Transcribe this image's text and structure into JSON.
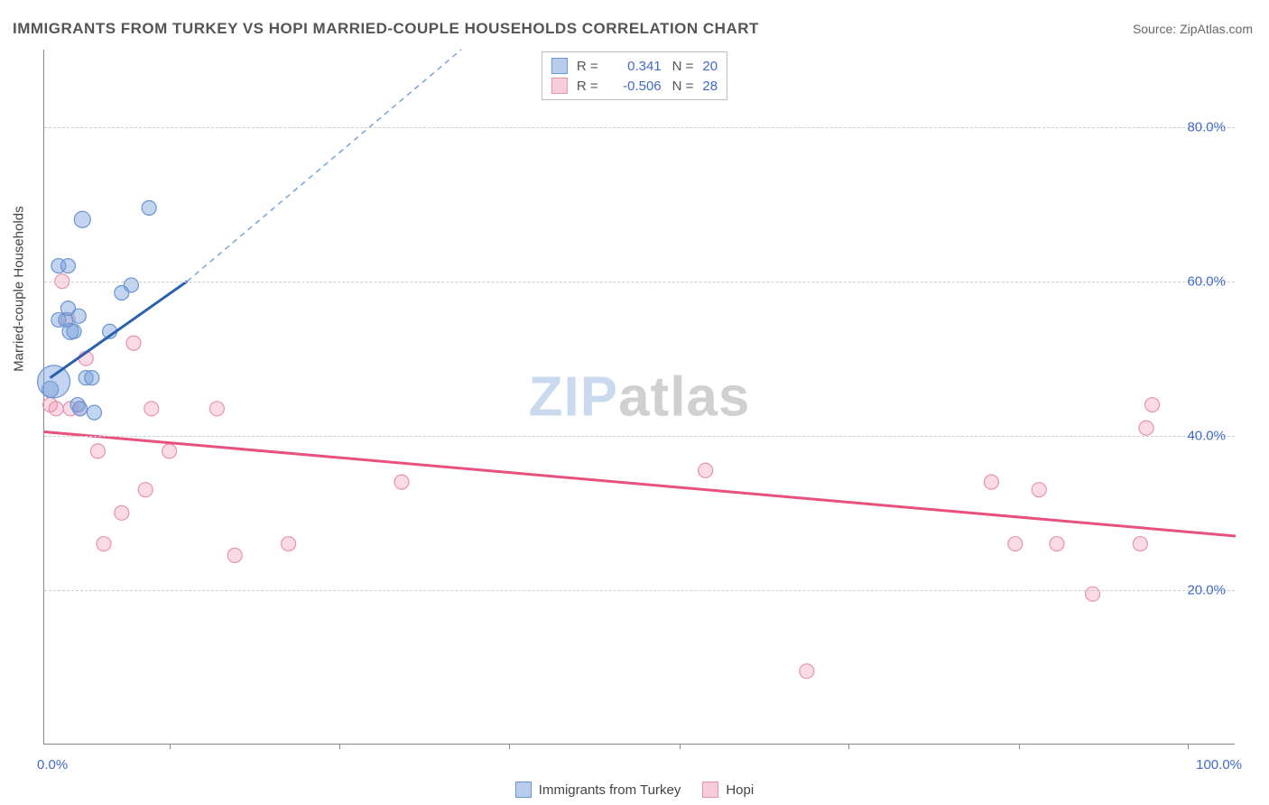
{
  "title": "IMMIGRANTS FROM TURKEY VS HOPI MARRIED-COUPLE HOUSEHOLDS CORRELATION CHART",
  "source_label": "Source: ",
  "source_value": "ZipAtlas.com",
  "ylabel": "Married-couple Households",
  "watermark_a": "ZIP",
  "watermark_b": "atlas",
  "chart": {
    "type": "scatter",
    "background_color": "#ffffff",
    "grid_color": "#cccccc",
    "axis_color": "#888888",
    "tick_label_color": "#4169c9",
    "xlim": [
      0,
      100
    ],
    "ylim": [
      0,
      90
    ],
    "x_min_label": "0.0%",
    "x_max_label": "100.0%",
    "x_ticks_pct": [
      10.5,
      24.8,
      39.0,
      53.3,
      67.5,
      81.8,
      96.0
    ],
    "y_gridlines": [
      20,
      40,
      60,
      80
    ],
    "y_labels": [
      "20.0%",
      "40.0%",
      "60.0%",
      "80.0%"
    ],
    "series": [
      {
        "key": "turkey",
        "name": "Immigrants from Turkey",
        "marker_fill": "rgba(120,160,220,0.45)",
        "marker_stroke": "#6a95d0",
        "line_color": "#2b5fb0",
        "line_dash_color": "#7aa2dd",
        "swatch_fill": "#b8cdec",
        "swatch_border": "#6a95d0",
        "R": "0.341",
        "N": "20",
        "trend_solid": {
          "x1": 0.5,
          "y1": 47.5,
          "x2": 12.0,
          "y2": 60.0
        },
        "trend_dash": {
          "x1": 12.0,
          "y1": 60.0,
          "x2": 35.0,
          "y2": 90.0
        },
        "points": [
          {
            "x": 0.5,
            "y": 46,
            "r": 9
          },
          {
            "x": 0.8,
            "y": 47,
            "r": 18
          },
          {
            "x": 1.2,
            "y": 55,
            "r": 8
          },
          {
            "x": 1.2,
            "y": 62,
            "r": 8
          },
          {
            "x": 1.8,
            "y": 55,
            "r": 8
          },
          {
            "x": 2.0,
            "y": 56.5,
            "r": 8
          },
          {
            "x": 2.0,
            "y": 62,
            "r": 8
          },
          {
            "x": 2.2,
            "y": 53.5,
            "r": 9
          },
          {
            "x": 2.5,
            "y": 53.5,
            "r": 8
          },
          {
            "x": 2.8,
            "y": 44,
            "r": 8
          },
          {
            "x": 2.9,
            "y": 55.5,
            "r": 8
          },
          {
            "x": 3.0,
            "y": 43.5,
            "r": 8
          },
          {
            "x": 3.2,
            "y": 68,
            "r": 9
          },
          {
            "x": 3.5,
            "y": 47.5,
            "r": 8
          },
          {
            "x": 4.0,
            "y": 47.5,
            "r": 8
          },
          {
            "x": 4.2,
            "y": 43,
            "r": 8
          },
          {
            "x": 5.5,
            "y": 53.5,
            "r": 8
          },
          {
            "x": 6.5,
            "y": 58.5,
            "r": 8
          },
          {
            "x": 7.3,
            "y": 59.5,
            "r": 8
          },
          {
            "x": 8.8,
            "y": 69.5,
            "r": 8
          }
        ]
      },
      {
        "key": "hopi",
        "name": "Hopi",
        "marker_fill": "rgba(240,150,180,0.35)",
        "marker_stroke": "#e594ae",
        "line_color": "#e8517e",
        "swatch_fill": "#f7cdd9",
        "swatch_border": "#e594ae",
        "R": "-0.506",
        "N": "28",
        "trend_solid": {
          "x1": 0.0,
          "y1": 40.5,
          "x2": 100.0,
          "y2": 27.0
        },
        "points": [
          {
            "x": 0.5,
            "y": 44,
            "r": 8
          },
          {
            "x": 1.0,
            "y": 43.5,
            "r": 8
          },
          {
            "x": 1.5,
            "y": 60,
            "r": 8
          },
          {
            "x": 2.0,
            "y": 55,
            "r": 8
          },
          {
            "x": 2.2,
            "y": 43.5,
            "r": 8
          },
          {
            "x": 3.0,
            "y": 43.5,
            "r": 8
          },
          {
            "x": 3.5,
            "y": 50,
            "r": 8
          },
          {
            "x": 4.5,
            "y": 38,
            "r": 8
          },
          {
            "x": 5.0,
            "y": 26,
            "r": 8
          },
          {
            "x": 6.5,
            "y": 30,
            "r": 8
          },
          {
            "x": 7.5,
            "y": 52,
            "r": 8
          },
          {
            "x": 8.5,
            "y": 33,
            "r": 8
          },
          {
            "x": 9.0,
            "y": 43.5,
            "r": 8
          },
          {
            "x": 10.5,
            "y": 38,
            "r": 8
          },
          {
            "x": 14.5,
            "y": 43.5,
            "r": 8
          },
          {
            "x": 16.0,
            "y": 24.5,
            "r": 8
          },
          {
            "x": 20.5,
            "y": 26,
            "r": 8
          },
          {
            "x": 30.0,
            "y": 34,
            "r": 8
          },
          {
            "x": 55.5,
            "y": 35.5,
            "r": 8
          },
          {
            "x": 64.0,
            "y": 9.5,
            "r": 8
          },
          {
            "x": 79.5,
            "y": 34,
            "r": 8
          },
          {
            "x": 81.5,
            "y": 26,
            "r": 8
          },
          {
            "x": 83.5,
            "y": 33,
            "r": 8
          },
          {
            "x": 85.0,
            "y": 26,
            "r": 8
          },
          {
            "x": 88.0,
            "y": 19.5,
            "r": 8
          },
          {
            "x": 92.0,
            "y": 26,
            "r": 8
          },
          {
            "x": 92.5,
            "y": 41,
            "r": 8
          },
          {
            "x": 93.0,
            "y": 44,
            "r": 8
          }
        ]
      }
    ]
  },
  "legend_r_label": "R =",
  "legend_n_label": "N ="
}
